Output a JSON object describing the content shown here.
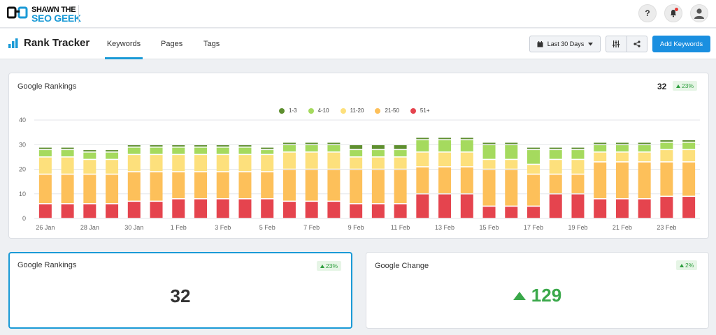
{
  "brand": {
    "line1": "SHAWN THE",
    "line2": "SEO GEEK"
  },
  "topbar": {
    "help_label": "?"
  },
  "header": {
    "title": "Rank Tracker",
    "tabs": [
      {
        "label": "Keywords",
        "active": true
      },
      {
        "label": "Pages",
        "active": false
      },
      {
        "label": "Tags",
        "active": false
      }
    ],
    "date_range": "Last 30 Days",
    "add_button": "Add Keywords"
  },
  "rankings_panel": {
    "title": "Google Rankings",
    "total": "32",
    "change": "23%"
  },
  "chart_data": {
    "type": "bar",
    "stacked": true,
    "ylim": [
      0,
      40
    ],
    "yticks": [
      "0",
      "10",
      "20",
      "30",
      "40"
    ],
    "categories": [
      "26 Jan",
      "27 Jan",
      "28 Jan",
      "29 Jan",
      "30 Jan",
      "31 Jan",
      "1 Feb",
      "2 Feb",
      "3 Feb",
      "4 Feb",
      "5 Feb",
      "6 Feb",
      "7 Feb",
      "8 Feb",
      "9 Feb",
      "10 Feb",
      "11 Feb",
      "12 Feb",
      "13 Feb",
      "14 Feb",
      "15 Feb",
      "16 Feb",
      "17 Feb",
      "18 Feb",
      "19 Feb",
      "20 Feb",
      "21 Feb",
      "22 Feb",
      "23 Feb",
      "24 Feb"
    ],
    "xtick_labels": [
      "26 Jan",
      "",
      "28 Jan",
      "",
      "30 Jan",
      "",
      "1 Feb",
      "",
      "3 Feb",
      "",
      "5 Feb",
      "",
      "7 Feb",
      "",
      "9 Feb",
      "",
      "11 Feb",
      "",
      "13 Feb",
      "",
      "15 Feb",
      "",
      "17 Feb",
      "",
      "19 Feb",
      "",
      "21 Feb",
      "",
      "23 Feb",
      ""
    ],
    "series": [
      {
        "name": "51+",
        "color": "#e5444e",
        "values": [
          6,
          6,
          6,
          6,
          7,
          7,
          8,
          8,
          8,
          8,
          8,
          7,
          7,
          7,
          6,
          6,
          6,
          10,
          10,
          10,
          5,
          5,
          5,
          10,
          10,
          8,
          8,
          8,
          9,
          9
        ]
      },
      {
        "name": "21-50",
        "color": "#fdc05a",
        "values": [
          12,
          12,
          12,
          12,
          12,
          12,
          11,
          11,
          11,
          11,
          11,
          13,
          13,
          13,
          14,
          14,
          14,
          11,
          11,
          11,
          15,
          15,
          13,
          8,
          8,
          15,
          15,
          15,
          14,
          14
        ]
      },
      {
        "name": "11-20",
        "color": "#fde07c",
        "values": [
          7,
          7,
          6,
          6,
          7,
          7,
          7,
          7,
          7,
          7,
          7,
          7,
          7,
          7,
          5,
          5,
          5,
          6,
          6,
          6,
          4,
          4,
          4,
          6,
          6,
          4,
          4,
          4,
          5,
          5
        ]
      },
      {
        "name": "4-10",
        "color": "#a5da5e",
        "values": [
          3,
          3,
          3,
          3,
          3,
          3,
          3,
          3,
          3,
          3,
          2,
          3,
          3,
          3,
          3,
          3,
          3,
          5,
          5,
          5,
          6,
          6,
          6,
          4,
          4,
          3,
          3,
          3,
          3,
          3
        ]
      },
      {
        "name": "1-3",
        "color": "#5e8f2f",
        "values": [
          1,
          1,
          1,
          1,
          1,
          1,
          1,
          1,
          1,
          1,
          1,
          1,
          1,
          1,
          2,
          2,
          2,
          1,
          1,
          1,
          1,
          1,
          1,
          1,
          1,
          1,
          1,
          1,
          1,
          1
        ]
      }
    ],
    "legend_order": [
      "1-3",
      "4-10",
      "11-20",
      "21-50",
      "51+"
    ],
    "grid": true,
    "legend_position": "top-center"
  },
  "kpi_rankings": {
    "title": "Google Rankings",
    "value": "32",
    "change": "23%"
  },
  "kpi_change": {
    "title": "Google Change",
    "value": "129",
    "change": "2%"
  },
  "colors": {
    "accent": "#1a9ad6",
    "positive": "#3aa84a"
  }
}
